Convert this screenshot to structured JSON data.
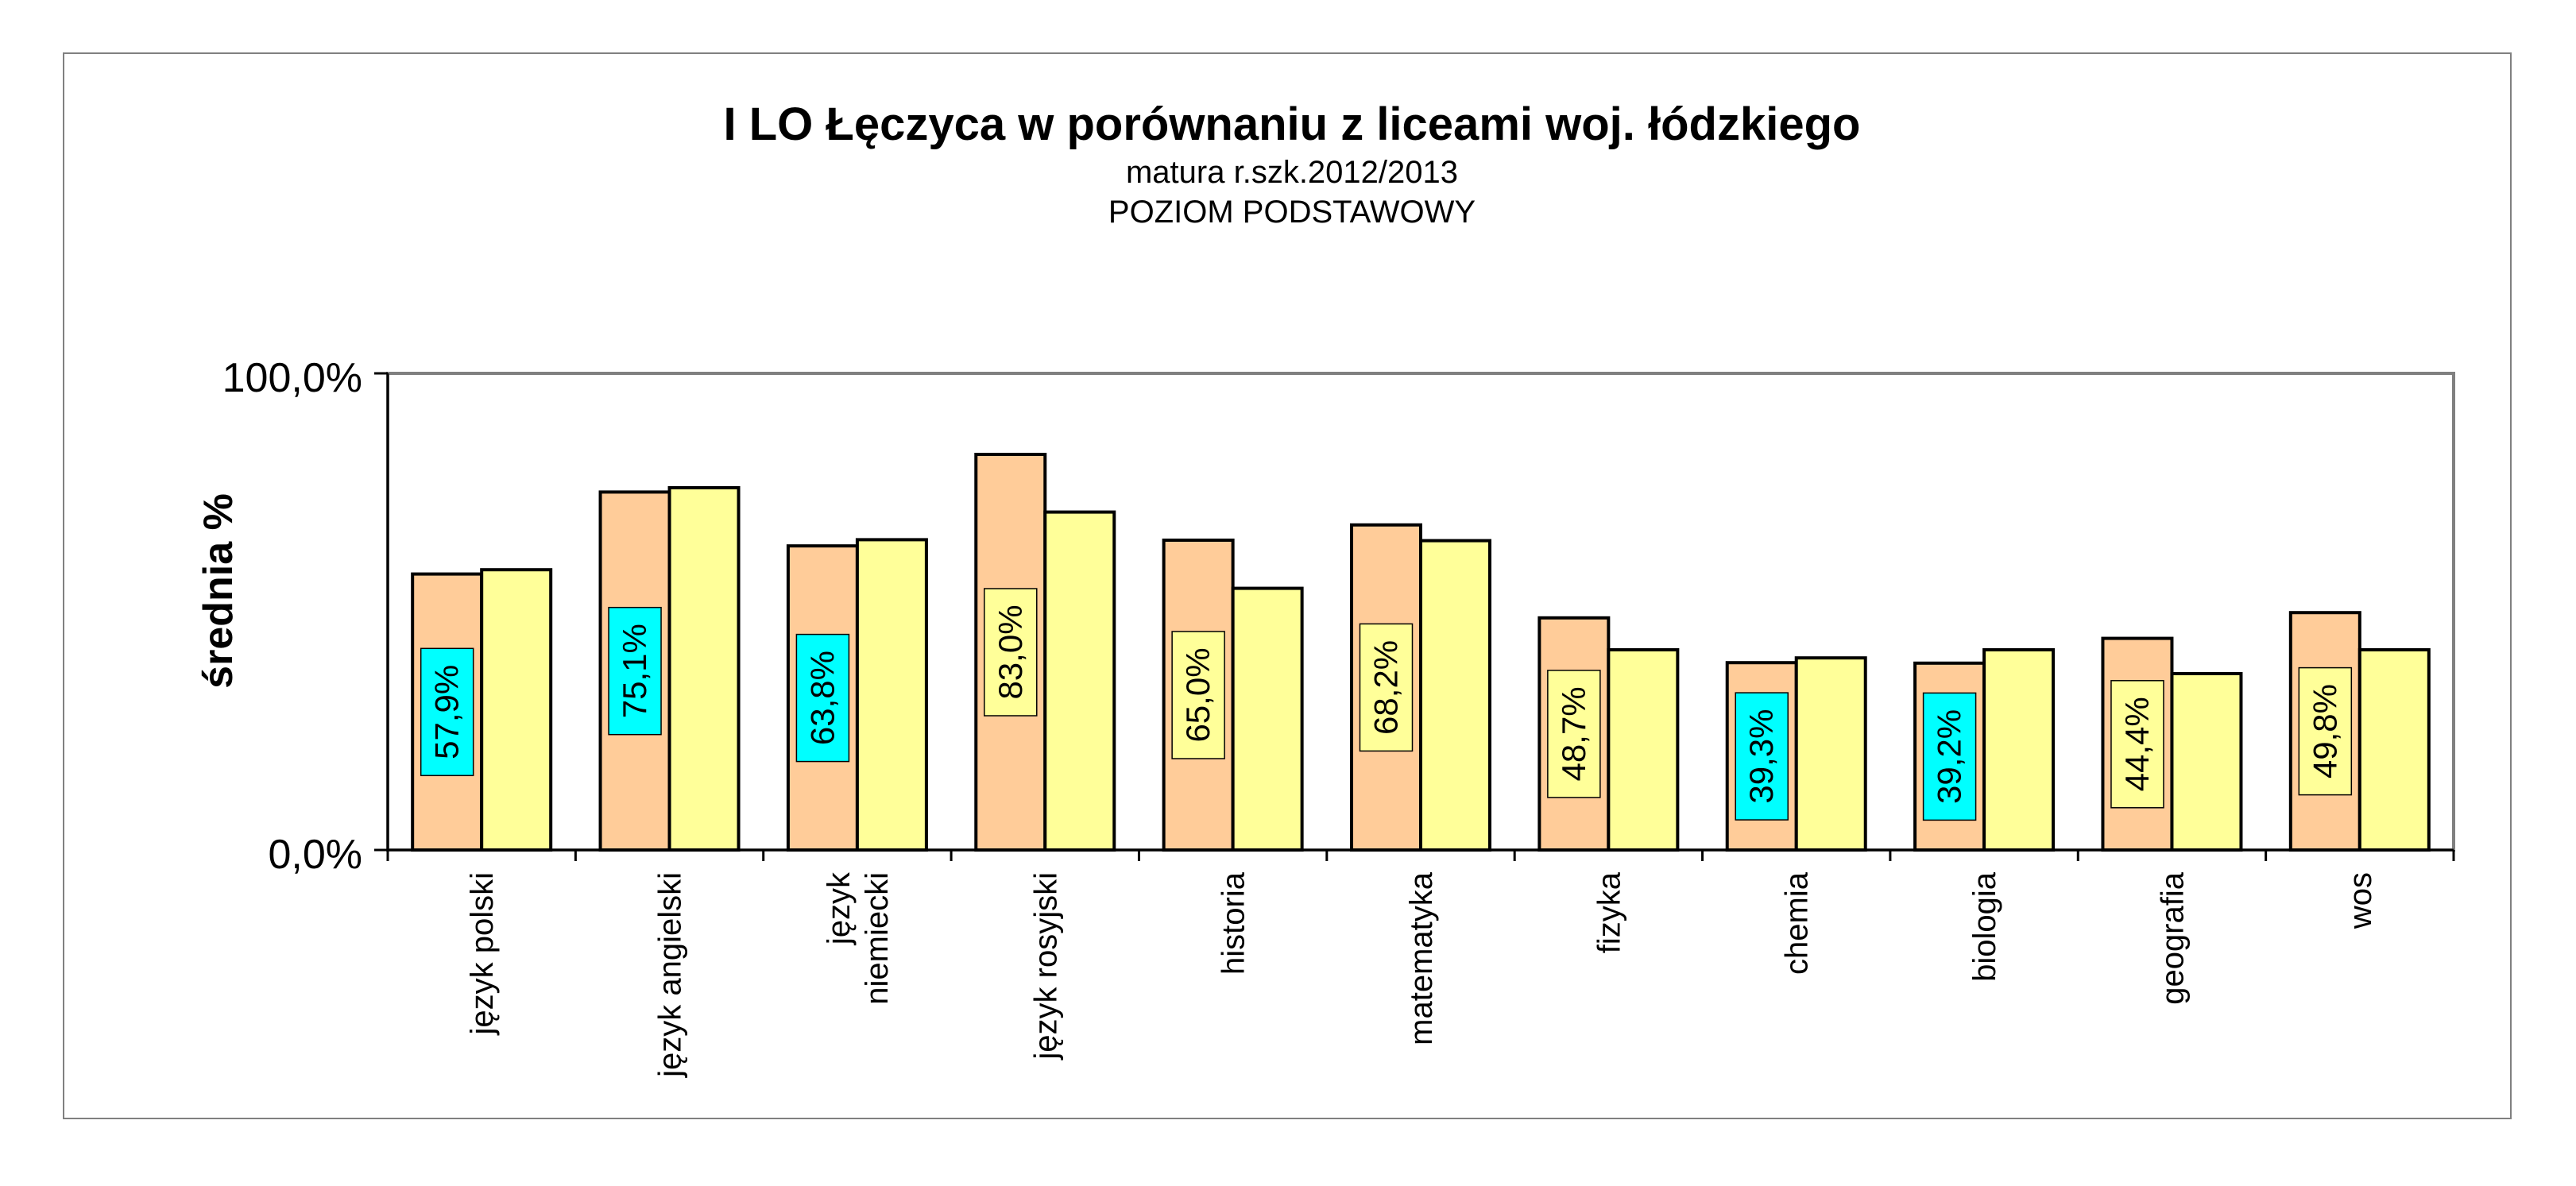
{
  "chart_data": {
    "type": "bar",
    "title": "I LO Łęczyca w porównaniu z liceami woj. łódzkiego",
    "subtitle_lines": [
      "matura  r.szk.2012/2013",
      "POZIOM PODSTAWOWY"
    ],
    "ylabel": "średnia %",
    "yticks": [
      "100,0%",
      "0,0%"
    ],
    "ylim": [
      0,
      100
    ],
    "categories": [
      [
        "język polski"
      ],
      [
        "język angielski"
      ],
      [
        "język",
        "niemiecki"
      ],
      [
        "język rosyjski"
      ],
      [
        "historia"
      ],
      [
        "matematyka"
      ],
      [
        "fizyka"
      ],
      [
        "chemia"
      ],
      [
        "biologia"
      ],
      [
        "geografia"
      ],
      [
        "wos"
      ]
    ],
    "series": [
      {
        "values": [
          57.9,
          75.1,
          63.8,
          83.0,
          65.0,
          68.2,
          48.7,
          39.3,
          39.2,
          44.4,
          49.8
        ],
        "labels": [
          "57,9%",
          "75,1%",
          "63,8%",
          "83,0%",
          "65,0%",
          "68,2%",
          "48,7%",
          "39,3%",
          "39,2%",
          "44,4%",
          "49,8%"
        ],
        "color": "#FFCC99"
      },
      {
        "values": [
          58.8,
          76.0,
          65.1,
          70.9,
          54.9,
          64.9,
          42.0,
          40.3,
          42.0,
          37.0,
          42.0
        ],
        "color": "#FFFF99"
      }
    ],
    "label_box_colors": {
      "above_comparison": "#FFFF99",
      "below_comparison": "#00FFFF"
    },
    "grid": false
  }
}
